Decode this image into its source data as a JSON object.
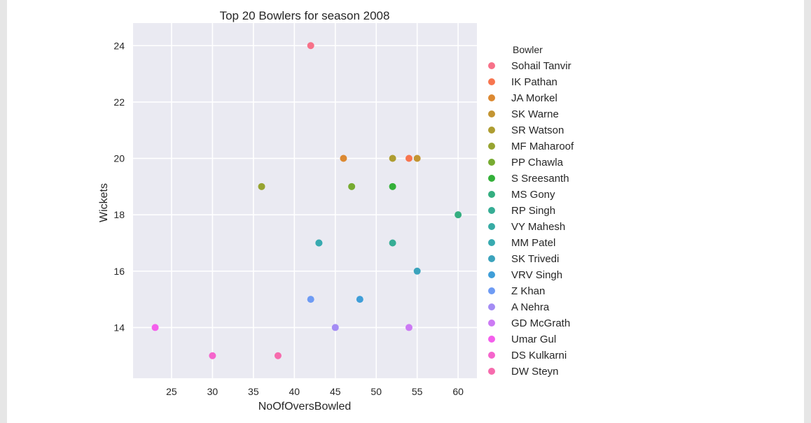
{
  "chart_data": {
    "type": "scatter",
    "title": "Top 20 Bowlers for season 2008",
    "xlabel": "NoOfOversBowled",
    "ylabel": "Wickets",
    "xlim": [
      20.3,
      62.3
    ],
    "ylim": [
      12.2,
      24.8
    ],
    "xticks": [
      25,
      30,
      35,
      40,
      45,
      50,
      55,
      60
    ],
    "yticks": [
      14,
      16,
      18,
      20,
      22,
      24
    ],
    "grid": true,
    "legend_title": "Bowler",
    "legend_position": "outside-right",
    "series": [
      {
        "name": "Sohail Tanvir",
        "color": "#f77189",
        "x": [
          42
        ],
        "y": [
          24
        ]
      },
      {
        "name": "IK Pathan",
        "color": "#f7754f",
        "x": [
          54
        ],
        "y": [
          20
        ]
      },
      {
        "name": "JA Morkel",
        "color": "#dc8932",
        "x": [
          46
        ],
        "y": [
          20
        ]
      },
      {
        "name": "SK Warne",
        "color": "#c39532",
        "x": [
          55
        ],
        "y": [
          20
        ]
      },
      {
        "name": "SR Watson",
        "color": "#ae9d31",
        "x": [
          52
        ],
        "y": [
          20
        ]
      },
      {
        "name": "MF Maharoof",
        "color": "#97a431",
        "x": [
          36
        ],
        "y": [
          19
        ]
      },
      {
        "name": "PP Chawla",
        "color": "#77ab31",
        "x": [
          47
        ],
        "y": [
          19
        ]
      },
      {
        "name": "S Sreesanth",
        "color": "#33b039",
        "x": [
          52
        ],
        "y": [
          19
        ]
      },
      {
        "name": "MS Gony",
        "color": "#34ae80",
        "x": [
          60
        ],
        "y": [
          18
        ]
      },
      {
        "name": "RP Singh",
        "color": "#36ad95",
        "x": [
          52
        ],
        "y": [
          17
        ]
      },
      {
        "name": "VY Mahesh",
        "color": "#37aba4",
        "x": [
          43
        ],
        "y": [
          17
        ]
      },
      {
        "name": "MM Patel",
        "color": "#38aab0",
        "x": [
          43
        ],
        "y": [
          17
        ]
      },
      {
        "name": "SK Trivedi",
        "color": "#3ba3bc",
        "x": [
          55
        ],
        "y": [
          16
        ]
      },
      {
        "name": "VRV Singh",
        "color": "#3f9ed8",
        "x": [
          48
        ],
        "y": [
          15
        ]
      },
      {
        "name": "Z Khan",
        "color": "#6e9bf4",
        "x": [
          42
        ],
        "y": [
          15
        ]
      },
      {
        "name": "A Nehra",
        "color": "#a48cf4",
        "x": [
          45
        ],
        "y": [
          14
        ]
      },
      {
        "name": "GD McGrath",
        "color": "#cc7af4",
        "x": [
          54
        ],
        "y": [
          14
        ]
      },
      {
        "name": "Umar Gul",
        "color": "#f45fec",
        "x": [
          23
        ],
        "y": [
          14
        ]
      },
      {
        "name": "DS Kulkarni",
        "color": "#f565cc",
        "x": [
          30
        ],
        "y": [
          13
        ]
      },
      {
        "name": "DW Steyn",
        "color": "#f66bad",
        "x": [
          38
        ],
        "y": [
          13
        ]
      }
    ]
  },
  "style": {
    "plot_background": "#eaeaf2",
    "grid_color": "#ffffff",
    "text_color": "#262626"
  }
}
